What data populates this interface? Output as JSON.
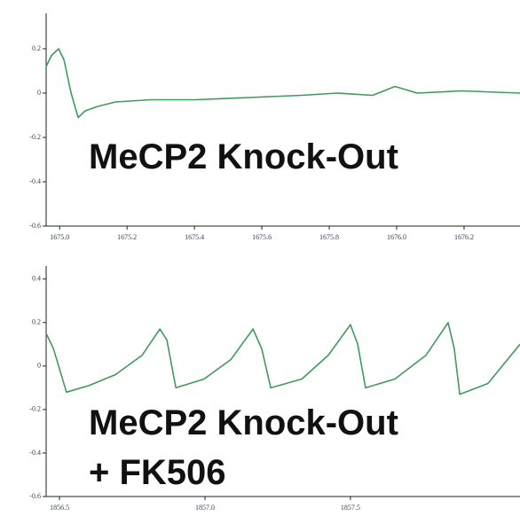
{
  "chart_data": [
    {
      "type": "line",
      "x": [
        1674.96,
        1674.976,
        1674.997,
        1675.013,
        1675.034,
        1675.055,
        1675.076,
        1675.113,
        1675.166,
        1675.271,
        1675.403,
        1675.561,
        1675.718,
        1675.824,
        1675.929,
        1675.995,
        1676.061,
        1676.192,
        1676.366
      ],
      "values": [
        0.12,
        0.17,
        0.2,
        0.15,
        0.0,
        -0.11,
        -0.08,
        -0.06,
        -0.04,
        -0.03,
        -0.03,
        -0.02,
        -0.01,
        0.0,
        -0.01,
        0.03,
        0.0,
        0.01,
        0.0
      ],
      "color": "#3f9a5c",
      "xlim": [
        1674.96,
        1676.366
      ],
      "xticks": [
        {
          "value": 1675.0,
          "label": "1675.0"
        },
        {
          "value": 1675.2,
          "label": "1675.2"
        },
        {
          "value": 1675.4,
          "label": "1675.4"
        },
        {
          "value": 1675.6,
          "label": "1675.6"
        },
        {
          "value": 1675.8,
          "label": "1675.8"
        },
        {
          "value": 1676.0,
          "label": "1676.0"
        },
        {
          "value": 1676.2,
          "label": "1676.2"
        }
      ],
      "ylim": [
        -0.6,
        0.36
      ],
      "yticks": [
        0.2,
        0,
        -0.2,
        -0.4,
        -0.6
      ],
      "annotations": [
        "MeCP2 Knock-Out"
      ]
    },
    {
      "type": "line",
      "x": [
        1856.454,
        1856.479,
        1856.524,
        1856.601,
        1856.692,
        1856.784,
        1856.845,
        1856.869,
        1856.9,
        1856.997,
        1857.089,
        1857.165,
        1857.195,
        1857.226,
        1857.333,
        1857.424,
        1857.5,
        1857.525,
        1857.552,
        1857.653,
        1857.76,
        1857.836,
        1857.857,
        1857.876,
        1857.973,
        1858.083
      ],
      "values": [
        0.15,
        0.08,
        -0.12,
        -0.09,
        -0.04,
        0.05,
        0.17,
        0.12,
        -0.1,
        -0.06,
        0.03,
        0.17,
        0.08,
        -0.1,
        -0.06,
        0.05,
        0.19,
        0.1,
        -0.1,
        -0.06,
        0.05,
        0.2,
        0.08,
        -0.13,
        -0.08,
        0.1
      ],
      "color": "#3f9a5c",
      "xlim": [
        1856.454,
        1858.083
      ],
      "xticks": [
        1856.5,
        {
          "value": 1857.0,
          "label": "1857.0"
        },
        1857.5
      ],
      "ylim": [
        -0.6,
        0.46
      ],
      "yticks": [
        0.4,
        0.2,
        0,
        -0.2,
        -0.4,
        -0.6
      ],
      "annotations": [
        "MeCP2 Knock-Out",
        "+ FK506"
      ]
    }
  ]
}
